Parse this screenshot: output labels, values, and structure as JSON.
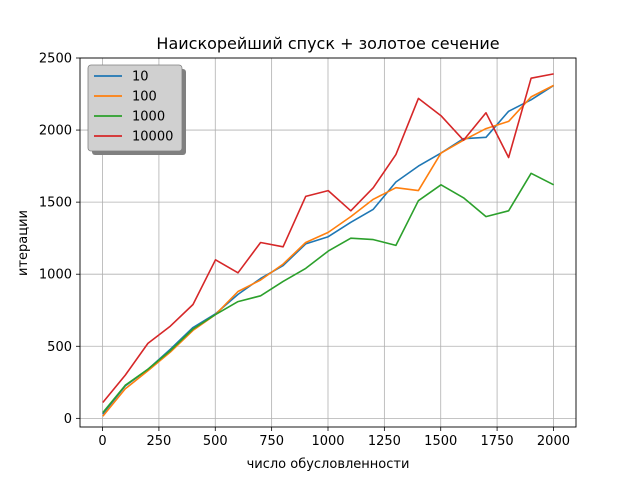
{
  "chart_data": {
    "type": "line",
    "title": "Наискорейший спуск + золотое сечение",
    "xlabel": "число обусловленности",
    "ylabel": "итерации",
    "xlim": [
      -100,
      2100
    ],
    "ylim": [
      -60,
      2500
    ],
    "xticks": [
      0,
      250,
      500,
      750,
      1000,
      1250,
      1500,
      1750,
      2000
    ],
    "xtick_labels": [
      "0",
      "250",
      "500",
      "750",
      "1000",
      "1250",
      "1500",
      "1750",
      "2000"
    ],
    "yticks": [
      0,
      500,
      1000,
      1500,
      2000,
      2500
    ],
    "ytick_labels": [
      "0",
      "500",
      "1000",
      "1500",
      "2000",
      "2500"
    ],
    "grid": true,
    "legend_position": "top-left",
    "x": [
      1,
      101,
      201,
      301,
      401,
      501,
      601,
      701,
      801,
      901,
      1001,
      1101,
      1201,
      1301,
      1401,
      1501,
      1601,
      1701,
      1801,
      1901,
      2001
    ],
    "series": [
      {
        "name": "10",
        "color": "#1f77b4",
        "values": [
          30,
          225,
          340,
          480,
          630,
          725,
          860,
          970,
          1060,
          1210,
          1260,
          1360,
          1450,
          1640,
          1750,
          1840,
          1940,
          1950,
          2130,
          2210,
          2310
        ]
      },
      {
        "name": "100",
        "color": "#ff7f0e",
        "values": [
          15,
          205,
          330,
          460,
          610,
          720,
          880,
          960,
          1070,
          1220,
          1290,
          1400,
          1520,
          1600,
          1580,
          1840,
          1930,
          2010,
          2060,
          2230,
          2310
        ]
      },
      {
        "name": "1000",
        "color": "#2ca02c",
        "values": [
          40,
          230,
          340,
          470,
          620,
          720,
          810,
          850,
          950,
          1040,
          1160,
          1250,
          1240,
          1200,
          1510,
          1620,
          1530,
          1400,
          1440,
          1700,
          1620
        ]
      },
      {
        "name": "10000",
        "color": "#d62728",
        "values": [
          110,
          300,
          520,
          640,
          790,
          1100,
          1010,
          1220,
          1190,
          1540,
          1580,
          1440,
          1600,
          1830,
          2220,
          2100,
          1930,
          2120,
          1810,
          2360,
          2390
        ]
      }
    ]
  }
}
